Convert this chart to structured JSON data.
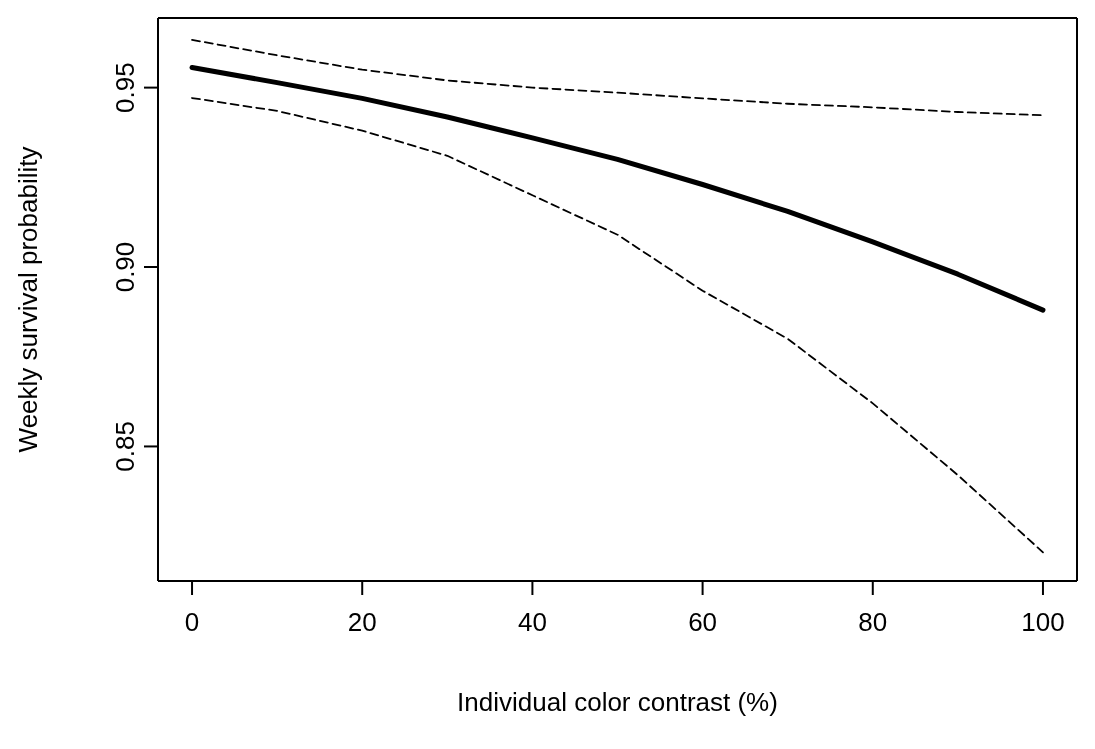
{
  "chart_data": {
    "type": "line",
    "xlabel": "Individual color contrast (%)",
    "ylabel": "Weekly survival probability",
    "x": [
      0,
      10,
      20,
      30,
      40,
      50,
      60,
      70,
      80,
      90,
      100
    ],
    "series": [
      {
        "color": "#000000",
        "line_style": "solid",
        "values": [
          0.9556,
          0.9514,
          0.947,
          0.9418,
          0.936,
          0.93,
          0.923,
          0.9155,
          0.907,
          0.898,
          0.888
        ]
      },
      {
        "color": "#000000",
        "line_style": "dashed",
        "values": [
          0.9633,
          0.959,
          0.955,
          0.952,
          0.95,
          0.9486,
          0.947,
          0.9455,
          0.9445,
          0.9432,
          0.9423
        ]
      },
      {
        "color": "#000000",
        "line_style": "dashed",
        "values": [
          0.9471,
          0.9435,
          0.938,
          0.931,
          0.92,
          0.909,
          0.8934,
          0.88,
          0.862,
          0.842,
          0.8205
        ]
      }
    ],
    "xlim": [
      -4,
      104
    ],
    "xticks": [
      0,
      20,
      40,
      60,
      80,
      100
    ],
    "ylim": [
      0.8125,
      0.9694
    ],
    "yticks": [
      {
        "value": 0.85,
        "label": "0.85"
      },
      {
        "value": 0.9,
        "label": "0.90"
      },
      {
        "value": 0.95,
        "label": "0.95"
      }
    ],
    "grid": false,
    "legend": false,
    "marker": "none"
  }
}
